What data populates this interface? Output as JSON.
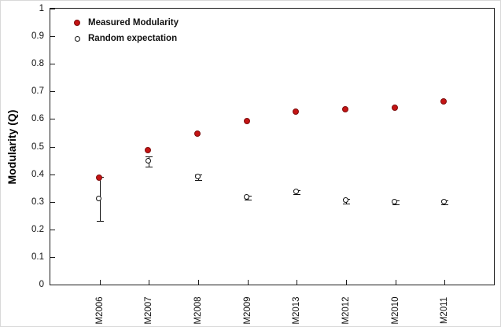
{
  "chart_data": {
    "type": "scatter",
    "title": "",
    "xlabel": "",
    "ylabel": "Modularity (Q)",
    "ylim": [
      0,
      1
    ],
    "yticks": [
      0,
      0.1,
      0.2,
      0.3,
      0.4,
      0.5,
      0.6,
      0.7,
      0.8,
      0.9,
      1
    ],
    "ytick_labels": [
      "0",
      "0.1",
      "0.2",
      "0.3",
      "0.4",
      "0.5",
      "0.6",
      "0.7",
      "0.8",
      "0.9",
      "1"
    ],
    "categories": [
      "M2006",
      "M2007",
      "M2008",
      "M2009",
      "M2013",
      "M2012",
      "M2010",
      "M2011"
    ],
    "grid": false,
    "legend_position": "top-left",
    "series": [
      {
        "name": "Measured Modularity",
        "marker": "filled-circle",
        "color": "#c41414",
        "values": [
          0.385,
          0.485,
          0.545,
          0.59,
          0.625,
          0.632,
          0.638,
          0.662
        ],
        "errors": [
          0,
          0,
          0,
          0,
          0,
          0,
          0,
          0
        ]
      },
      {
        "name": "Random expectation",
        "marker": "open-circle",
        "color": "#111111",
        "values": [
          0.31,
          0.445,
          0.39,
          0.315,
          0.335,
          0.302,
          0.298,
          0.298
        ],
        "errors": [
          0.08,
          0.018,
          0.01,
          0.008,
          0.008,
          0.008,
          0.008,
          0.008
        ]
      }
    ]
  }
}
